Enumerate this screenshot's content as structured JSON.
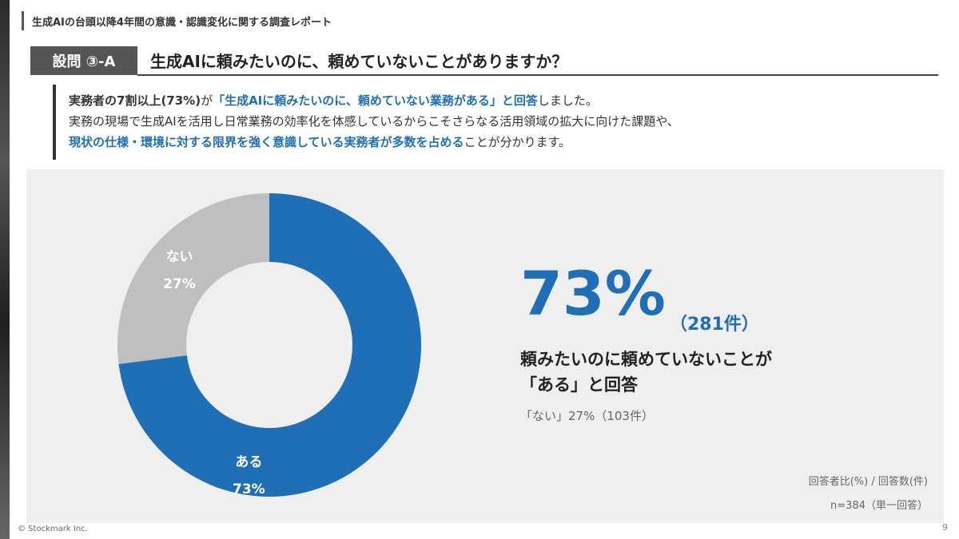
{
  "header": {
    "report_title": "生成AIの台頭以降4年間の意識・認識変化に関する調査レポート"
  },
  "question": {
    "label": "設問 ③-A",
    "text": "生成AIに頼みたいのに、頼めていないことがありますか？"
  },
  "summary": {
    "line1": {
      "bold": "実務者の7割以上(73%)",
      "plain1": "が",
      "accent": "「生成AIに頼みたいのに、頼めていない業務がある」と回答",
      "plain2": "しました。"
    },
    "line2": "実務の現場で生成AIを活用し日常業務の効率化を体感しているからこそさらなる活用領域の拡大に向けた課題や、",
    "line3": {
      "accent": "現状の仕様・環境に対する限界を強く意識している実務者が多数を占める",
      "plain": "ことが分かります。"
    }
  },
  "chart_data": {
    "type": "pie",
    "style": "donut",
    "slices": [
      {
        "label": "ある",
        "value": 73,
        "display": "73%",
        "color": "#1f6fb7"
      },
      {
        "label": "ない",
        "value": 27,
        "display": "27%",
        "color": "#bfbfbf"
      }
    ],
    "unit_note": "回答者比(%) / 回答数(件)",
    "sample_note": "n=384（単一回答）"
  },
  "result": {
    "big_percent": "73%",
    "big_count": "（281件）",
    "headline_line1": "頼みたいのに頼めていないことが",
    "headline_line2": "「ある」と回答",
    "secondary": "「ない」27%（103件）"
  },
  "footer": {
    "copyright": "© Stockmark Inc.",
    "page_number": "9"
  }
}
